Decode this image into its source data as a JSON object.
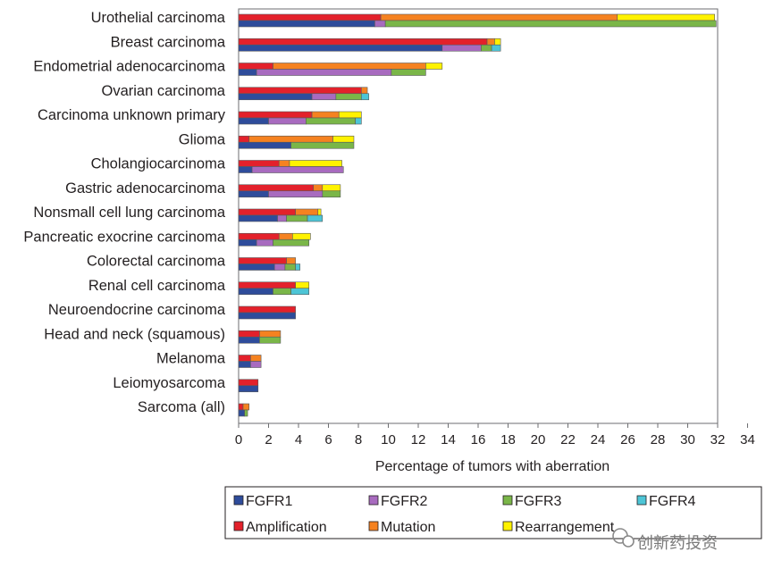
{
  "chart_data": {
    "type": "bar",
    "orientation": "horizontal",
    "stacked": true,
    "xlabel": "Percentage of tumors with aberration",
    "xlim": [
      0,
      32
    ],
    "xticks": [
      0,
      2,
      4,
      6,
      8,
      10,
      12,
      14,
      16,
      18,
      20,
      22,
      24,
      26,
      28,
      30,
      32,
      34
    ],
    "categories": [
      "Urothelial carcinoma",
      "Breast carcinoma",
      "Endometrial adenocarcinoma",
      "Ovarian carcinoma",
      "Carcinoma unknown primary",
      "Glioma",
      "Cholangiocarcinoma",
      "Gastric adenocarcinoma",
      "Nonsmall cell lung carcinoma",
      "Pancreatic exocrine carcinoma",
      "Colorectal carcinoma",
      "Renal cell carcinoma",
      "Neuroendocrine carcinoma",
      "Head and neck (squamous)",
      "Melanoma",
      "Leiomyosarcoma",
      "Sarcoma (all)"
    ],
    "groups": [
      {
        "name": "Aberration type",
        "series": [
          {
            "name": "Amplification",
            "color": "#e3212b",
            "values": [
              9.5,
              16.6,
              2.3,
              8.2,
              4.9,
              0.7,
              2.7,
              5.0,
              3.8,
              2.7,
              3.2,
              3.8,
              3.8,
              1.4,
              0.8,
              1.3,
              0.3
            ]
          },
          {
            "name": "Mutation",
            "color": "#f58220",
            "values": [
              15.8,
              0.5,
              10.2,
              0.4,
              1.8,
              5.6,
              0.7,
              0.6,
              1.5,
              0.9,
              0.6,
              0.0,
              0.0,
              1.4,
              0.7,
              0.0,
              0.4
            ]
          },
          {
            "name": "Rearrangement",
            "color": "#fff200",
            "values": [
              6.5,
              0.4,
              1.1,
              0.0,
              1.5,
              1.4,
              3.5,
              1.2,
              0.2,
              1.2,
              0.0,
              0.9,
              0.0,
              0.0,
              0.0,
              0.0,
              0.0
            ]
          }
        ]
      },
      {
        "name": "Gene",
        "series": [
          {
            "name": "FGFR1",
            "color": "#2e4c9b",
            "values": [
              9.1,
              13.6,
              1.2,
              4.9,
              2.0,
              3.5,
              0.9,
              2.0,
              2.6,
              1.2,
              2.4,
              2.3,
              3.8,
              1.4,
              0.8,
              1.3,
              0.4
            ]
          },
          {
            "name": "FGFR2",
            "color": "#a86bbf",
            "values": [
              0.7,
              2.6,
              9.0,
              1.6,
              2.5,
              0.0,
              6.1,
              3.6,
              0.6,
              1.1,
              0.7,
              0.0,
              0.0,
              0.0,
              0.7,
              0.0,
              0.0
            ]
          },
          {
            "name": "FGFR3",
            "color": "#7ab648",
            "values": [
              22.1,
              0.7,
              2.3,
              1.7,
              3.3,
              4.2,
              0.0,
              1.2,
              1.4,
              2.4,
              0.7,
              1.2,
              0.0,
              1.4,
              0.0,
              0.0,
              0.2
            ]
          },
          {
            "name": "FGFR4",
            "color": "#4dc5d6",
            "values": [
              0.0,
              0.6,
              0.0,
              0.5,
              0.4,
              0.0,
              0.0,
              0.0,
              1.0,
              0.0,
              0.3,
              1.2,
              0.0,
              0.0,
              0.0,
              0.0,
              0.0
            ]
          }
        ]
      }
    ],
    "legend": {
      "position": "bottom",
      "entries": [
        "FGFR1",
        "FGFR2",
        "FGFR3",
        "FGFR4",
        "Amplification",
        "Mutation",
        "Rearrangement"
      ]
    }
  },
  "watermark": "创新药投资",
  "watermark_icon": "wechat-icon"
}
